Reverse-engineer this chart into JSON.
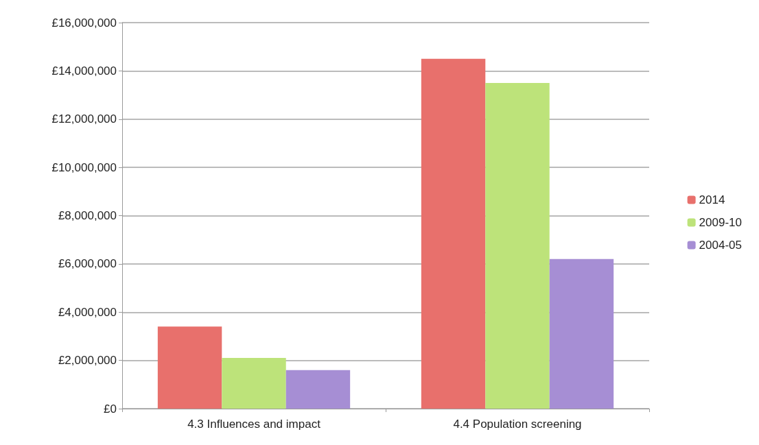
{
  "chart_data": {
    "type": "bar",
    "categories": [
      "4.3 Influences and impact",
      "4.4 Population screening"
    ],
    "series": [
      {
        "name": "2014",
        "color": "#e8706c",
        "values": [
          3400000,
          14500000
        ]
      },
      {
        "name": "2009-10",
        "color": "#bde37a",
        "values": [
          2100000,
          13500000
        ]
      },
      {
        "name": "2004-05",
        "color": "#a68ed4",
        "values": [
          1600000,
          6200000
        ]
      }
    ],
    "ylim": [
      0,
      16000000
    ],
    "yticks": [
      {
        "value": 0,
        "label": "£0"
      },
      {
        "value": 2000000,
        "label": "£2,000,000"
      },
      {
        "value": 4000000,
        "label": "£4,000,000"
      },
      {
        "value": 6000000,
        "label": "£6,000,000"
      },
      {
        "value": 8000000,
        "label": "£8,000,000"
      },
      {
        "value": 10000000,
        "label": "£10,000,000"
      },
      {
        "value": 12000000,
        "label": "£12,000,000"
      },
      {
        "value": 14000000,
        "label": "£14,000,000"
      },
      {
        "value": 16000000,
        "label": "£16,000,000"
      }
    ],
    "grid": "y",
    "legend": "right"
  }
}
